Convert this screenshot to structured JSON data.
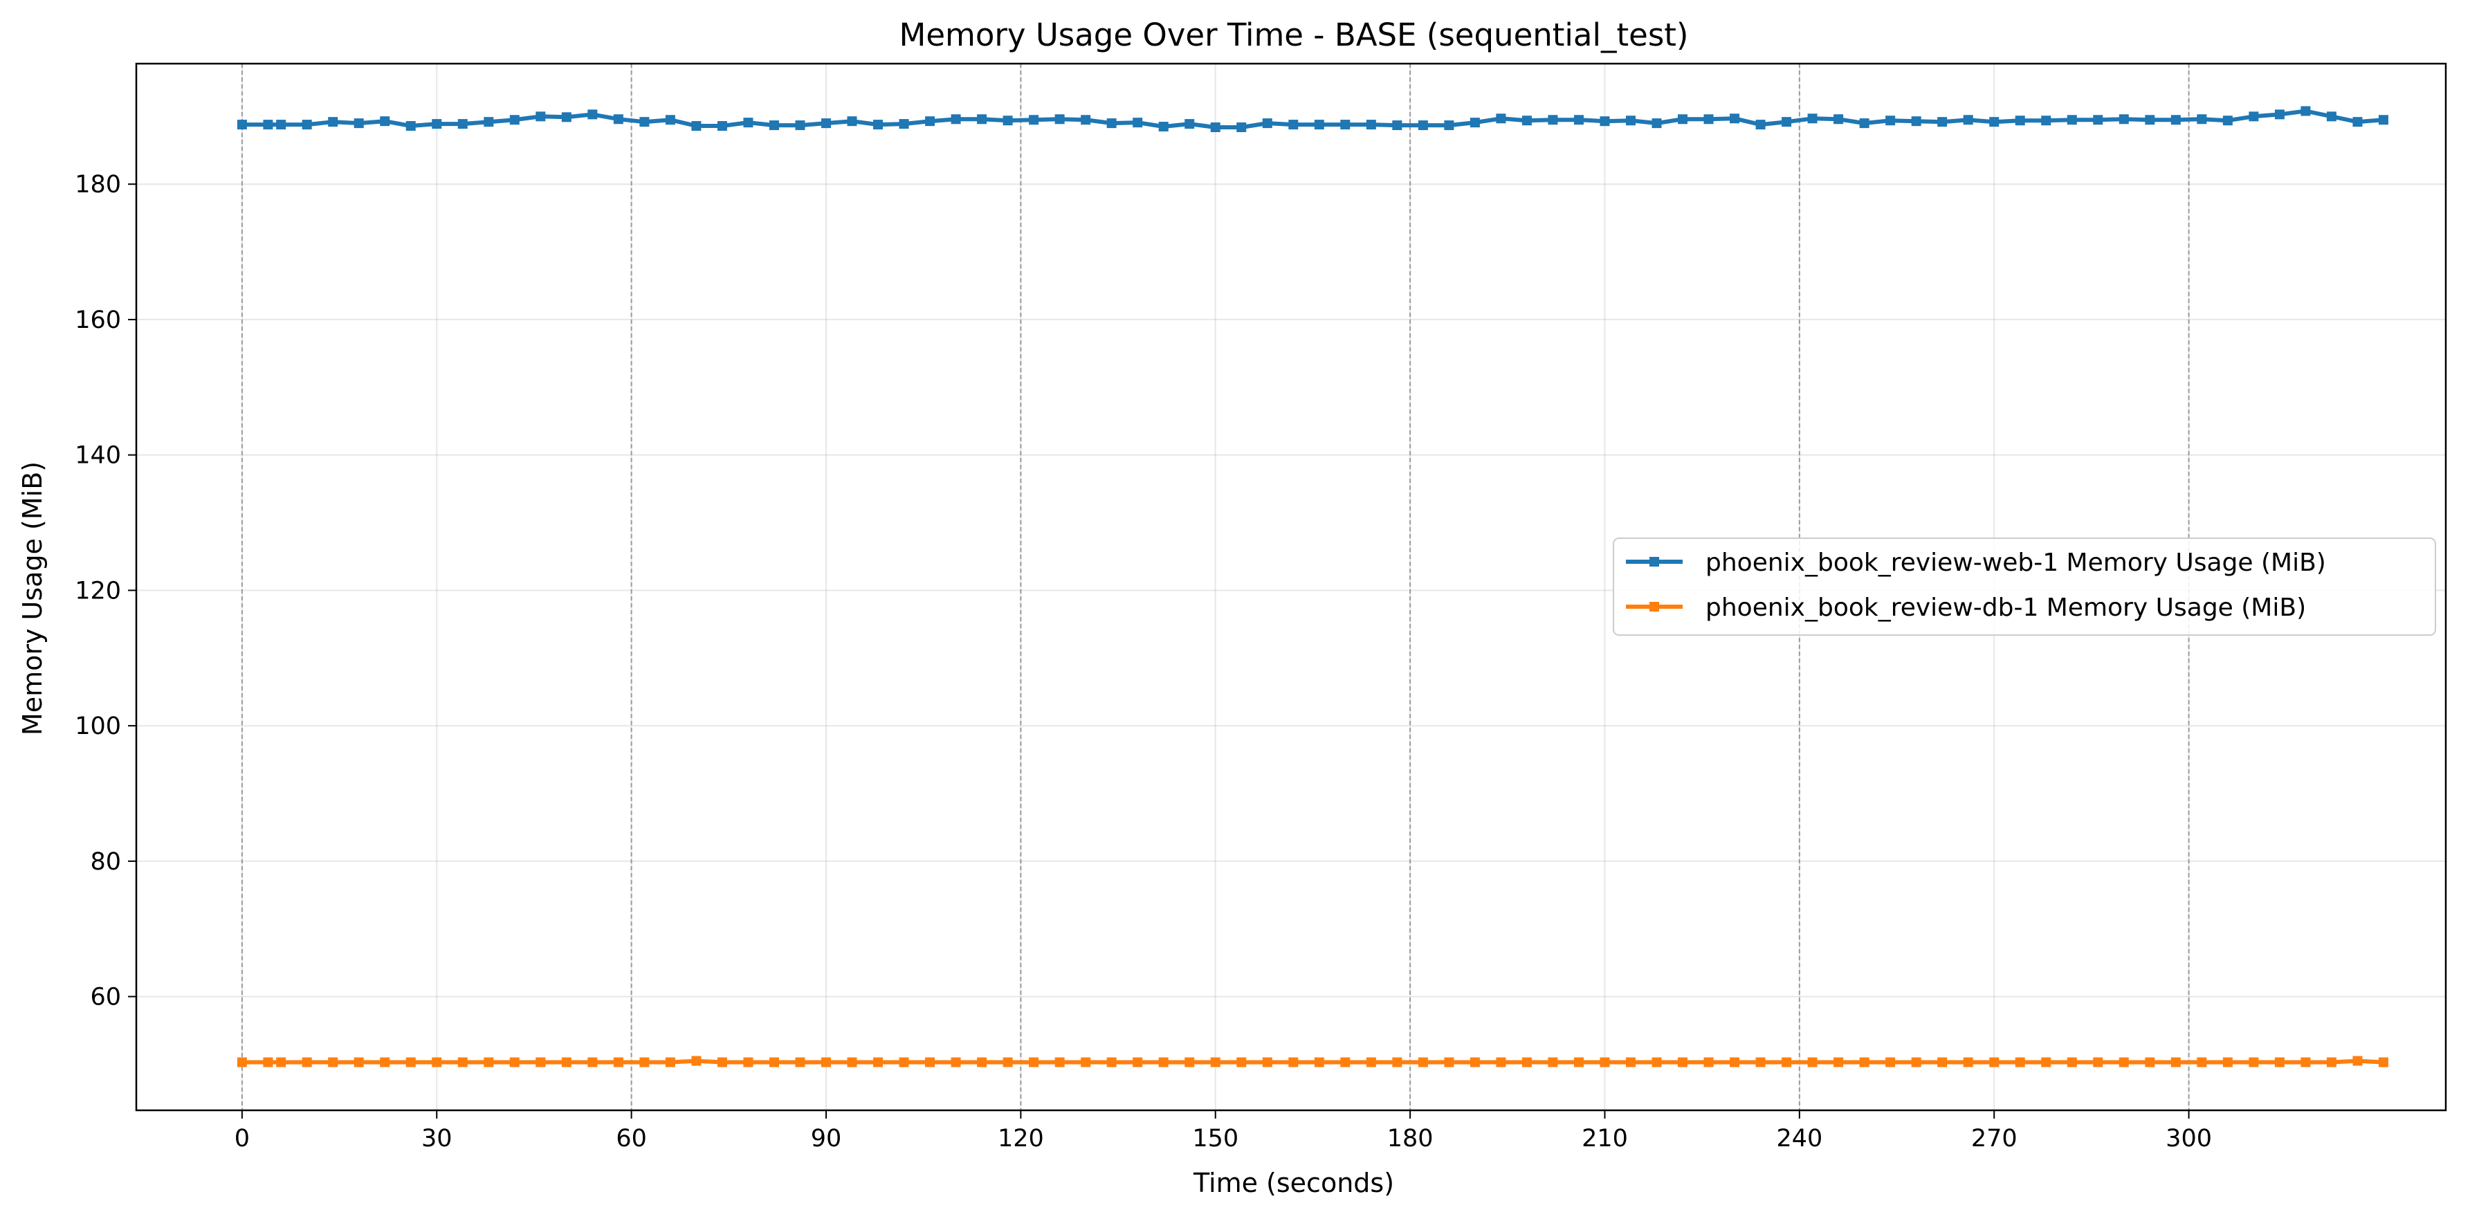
{
  "chart_data": {
    "type": "line",
    "title": "Memory Usage Over Time - BASE (sequential_test)",
    "xlabel": "Time (seconds)",
    "ylabel": "Memory Usage (MiB)",
    "xlim": [
      -16.3,
      339.6
    ],
    "ylim": [
      43.2,
      197.8
    ],
    "xticks": [
      0,
      30,
      60,
      90,
      120,
      150,
      180,
      210,
      240,
      270,
      300
    ],
    "yticks": [
      60,
      80,
      100,
      120,
      140,
      160,
      180
    ],
    "grid": true,
    "vlines": [
      0,
      60,
      120,
      180,
      240,
      300
    ],
    "legend_position": "center-right",
    "x": [
      0,
      4,
      6,
      10,
      14,
      18,
      22,
      26,
      30,
      34,
      38,
      42,
      46,
      50,
      54,
      58,
      62,
      66,
      70,
      74,
      78,
      82,
      86,
      90,
      94,
      98,
      102,
      106,
      110,
      114,
      118,
      122,
      126,
      130,
      134,
      138,
      142,
      146,
      150,
      154,
      158,
      162,
      166,
      170,
      174,
      178,
      182,
      186,
      190,
      194,
      198,
      202,
      206,
      210,
      214,
      218,
      222,
      226,
      230,
      234,
      238,
      242,
      246,
      250,
      254,
      258,
      262,
      266,
      270,
      274,
      278,
      282,
      286,
      290,
      294,
      298,
      302,
      306,
      310,
      314,
      318,
      322,
      326,
      330
    ],
    "series": [
      {
        "name": "phoenix_book_review-web-1 Memory Usage (MiB)",
        "color": "#1f77b4",
        "values": [
          188.8,
          188.8,
          188.8,
          188.8,
          189.2,
          189.0,
          189.3,
          188.6,
          188.9,
          188.9,
          189.2,
          189.5,
          190.0,
          189.9,
          190.3,
          189.6,
          189.2,
          189.5,
          188.6,
          188.6,
          189.1,
          188.7,
          188.7,
          189.0,
          189.3,
          188.8,
          188.9,
          189.3,
          189.6,
          189.6,
          189.4,
          189.5,
          189.6,
          189.5,
          189.0,
          189.1,
          188.5,
          188.9,
          188.4,
          188.4,
          189.0,
          188.8,
          188.8,
          188.8,
          188.8,
          188.7,
          188.7,
          188.7,
          189.1,
          189.7,
          189.4,
          189.5,
          189.5,
          189.3,
          189.4,
          189.0,
          189.6,
          189.6,
          189.7,
          188.8,
          189.2,
          189.7,
          189.6,
          189.0,
          189.4,
          189.3,
          189.2,
          189.5,
          189.2,
          189.4,
          189.4,
          189.5,
          189.5,
          189.6,
          189.5,
          189.5,
          189.6,
          189.4,
          190.0,
          190.3,
          190.8,
          190.0,
          189.2,
          189.5
        ]
      },
      {
        "name": "phoenix_book_review-db-1 Memory Usage (MiB)",
        "color": "#ff7f0e",
        "values": [
          50.3,
          50.3,
          50.3,
          50.3,
          50.3,
          50.3,
          50.3,
          50.3,
          50.3,
          50.3,
          50.3,
          50.3,
          50.3,
          50.3,
          50.3,
          50.3,
          50.3,
          50.3,
          50.5,
          50.3,
          50.3,
          50.3,
          50.3,
          50.3,
          50.3,
          50.3,
          50.3,
          50.3,
          50.3,
          50.3,
          50.3,
          50.3,
          50.3,
          50.3,
          50.3,
          50.3,
          50.3,
          50.3,
          50.3,
          50.3,
          50.3,
          50.3,
          50.3,
          50.3,
          50.3,
          50.3,
          50.3,
          50.3,
          50.3,
          50.3,
          50.3,
          50.3,
          50.3,
          50.3,
          50.3,
          50.3,
          50.3,
          50.3,
          50.3,
          50.3,
          50.3,
          50.3,
          50.3,
          50.3,
          50.3,
          50.3,
          50.3,
          50.3,
          50.3,
          50.3,
          50.3,
          50.3,
          50.3,
          50.3,
          50.3,
          50.3,
          50.3,
          50.3,
          50.3,
          50.3,
          50.3,
          50.3,
          50.5,
          50.3
        ]
      }
    ]
  }
}
